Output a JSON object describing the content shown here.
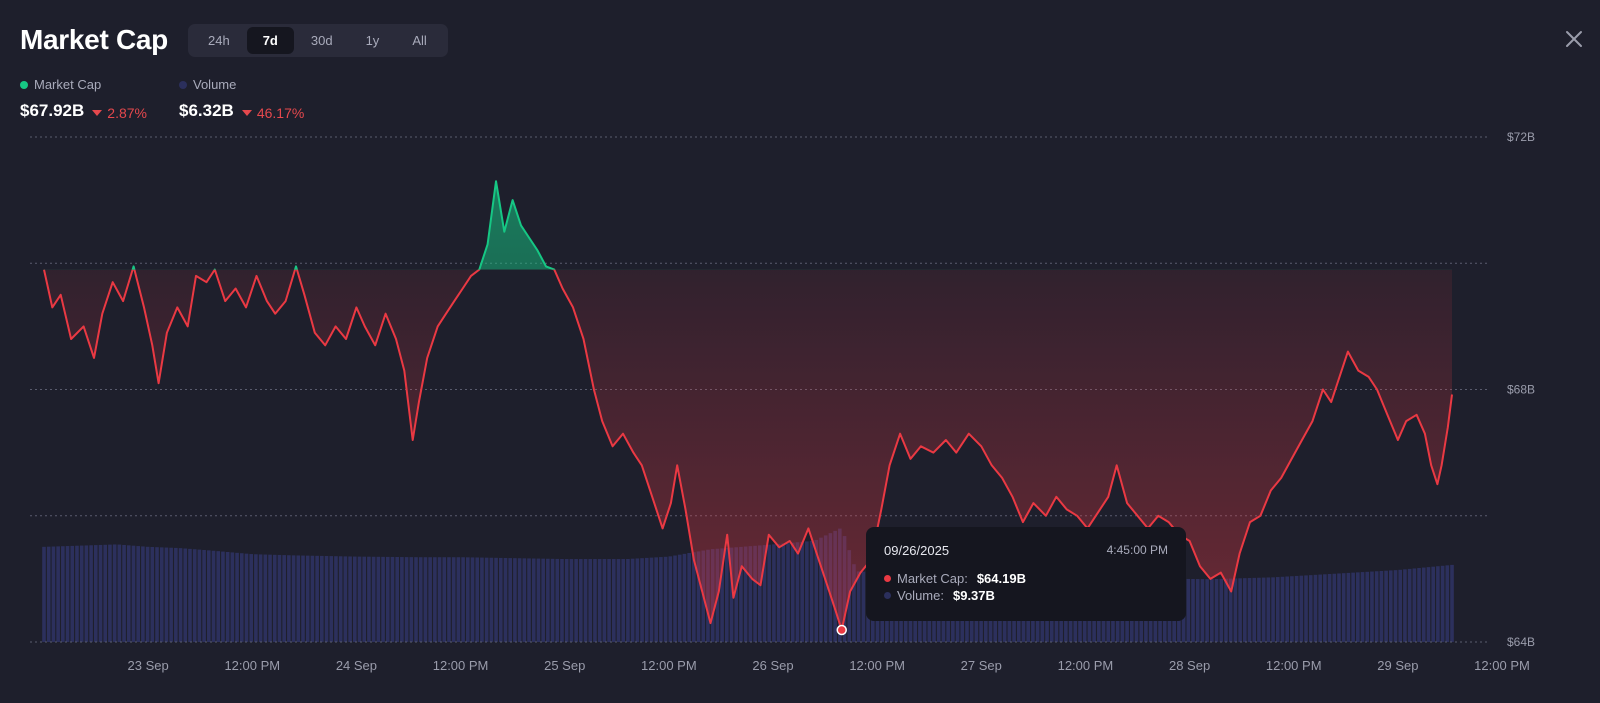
{
  "header": {
    "title": "Market Cap",
    "tabs": [
      {
        "label": "24h",
        "active": false
      },
      {
        "label": "7d",
        "active": true
      },
      {
        "label": "30d",
        "active": false
      },
      {
        "label": "1y",
        "active": false
      },
      {
        "label": "All",
        "active": false
      }
    ],
    "close_icon": "close-icon"
  },
  "legend": {
    "market_cap": {
      "label": "Market Cap",
      "value": "$67.92B",
      "change": "2.87%",
      "direction": "down",
      "color": "#16c784"
    },
    "volume": {
      "label": "Volume",
      "value": "$6.32B",
      "change": "46.17%",
      "direction": "down",
      "color": "#3a3f7a"
    }
  },
  "tooltip": {
    "date": "09/26/2025",
    "time": "4:45:00 PM",
    "market_cap_label": "Market Cap:",
    "market_cap_value": "$64.19B",
    "volume_label": "Volume:",
    "volume_value": "$9.37B"
  },
  "colors": {
    "up": "#16c784",
    "down": "#ea3943",
    "volume": "#2f3466",
    "background": "#1e1f2c"
  },
  "chart_data": {
    "type": "area",
    "x_tick_labels": [
      "23 Sep",
      "12:00 PM",
      "24 Sep",
      "12:00 PM",
      "25 Sep",
      "12:00 PM",
      "26 Sep",
      "12:00 PM",
      "27 Sep",
      "12:00 PM",
      "28 Sep",
      "12:00 PM",
      "29 Sep",
      "12:00 PM"
    ],
    "y_tick_labels": [
      "$72B",
      "$68B",
      "$64B"
    ],
    "ylim": [
      64,
      72
    ],
    "baseline": 69.9,
    "grid": true,
    "xrange": [
      0,
      7
    ],
    "market_cap": [
      [
        0.0,
        69.9
      ],
      [
        0.04,
        69.3
      ],
      [
        0.08,
        69.5
      ],
      [
        0.13,
        68.8
      ],
      [
        0.19,
        69.0
      ],
      [
        0.24,
        68.5
      ],
      [
        0.28,
        69.2
      ],
      [
        0.33,
        69.7
      ],
      [
        0.38,
        69.4
      ],
      [
        0.43,
        69.95
      ],
      [
        0.48,
        69.3
      ],
      [
        0.52,
        68.7
      ],
      [
        0.55,
        68.1
      ],
      [
        0.59,
        68.9
      ],
      [
        0.64,
        69.3
      ],
      [
        0.69,
        69.0
      ],
      [
        0.73,
        69.8
      ],
      [
        0.78,
        69.7
      ],
      [
        0.82,
        69.9
      ],
      [
        0.87,
        69.4
      ],
      [
        0.92,
        69.6
      ],
      [
        0.97,
        69.3
      ],
      [
        1.02,
        69.8
      ],
      [
        1.07,
        69.4
      ],
      [
        1.11,
        69.2
      ],
      [
        1.16,
        69.4
      ],
      [
        1.21,
        69.95
      ],
      [
        1.25,
        69.5
      ],
      [
        1.3,
        68.9
      ],
      [
        1.35,
        68.7
      ],
      [
        1.4,
        69.0
      ],
      [
        1.45,
        68.8
      ],
      [
        1.5,
        69.3
      ],
      [
        1.54,
        69.0
      ],
      [
        1.59,
        68.7
      ],
      [
        1.64,
        69.2
      ],
      [
        1.69,
        68.8
      ],
      [
        1.73,
        68.3
      ],
      [
        1.77,
        67.2
      ],
      [
        1.8,
        67.8
      ],
      [
        1.84,
        68.5
      ],
      [
        1.89,
        69.0
      ],
      [
        1.93,
        69.2
      ],
      [
        1.97,
        69.4
      ],
      [
        2.01,
        69.6
      ],
      [
        2.05,
        69.8
      ],
      [
        2.09,
        69.9
      ],
      [
        2.13,
        70.3
      ],
      [
        2.17,
        71.3
      ],
      [
        2.21,
        70.5
      ],
      [
        2.25,
        71.0
      ],
      [
        2.29,
        70.6
      ],
      [
        2.33,
        70.4
      ],
      [
        2.37,
        70.2
      ],
      [
        2.41,
        69.95
      ],
      [
        2.45,
        69.9
      ],
      [
        2.49,
        69.6
      ],
      [
        2.54,
        69.3
      ],
      [
        2.59,
        68.8
      ],
      [
        2.64,
        68.0
      ],
      [
        2.68,
        67.5
      ],
      [
        2.73,
        67.1
      ],
      [
        2.78,
        67.3
      ],
      [
        2.83,
        67.0
      ],
      [
        2.87,
        66.8
      ],
      [
        2.92,
        66.3
      ],
      [
        2.97,
        65.8
      ],
      [
        3.01,
        66.2
      ],
      [
        3.04,
        66.8
      ],
      [
        3.08,
        66.1
      ],
      [
        3.12,
        65.3
      ],
      [
        3.16,
        64.8
      ],
      [
        3.2,
        64.3
      ],
      [
        3.24,
        64.8
      ],
      [
        3.28,
        65.7
      ],
      [
        3.31,
        64.7
      ],
      [
        3.35,
        65.2
      ],
      [
        3.4,
        65.0
      ],
      [
        3.44,
        64.9
      ],
      [
        3.48,
        65.7
      ],
      [
        3.53,
        65.5
      ],
      [
        3.58,
        65.6
      ],
      [
        3.62,
        65.4
      ],
      [
        3.67,
        65.8
      ],
      [
        3.72,
        65.3
      ],
      [
        3.76,
        64.9
      ],
      [
        3.8,
        64.5
      ],
      [
        3.83,
        64.19
      ],
      [
        3.87,
        64.8
      ],
      [
        3.92,
        65.1
      ],
      [
        3.97,
        65.3
      ],
      [
        4.02,
        66.1
      ],
      [
        4.06,
        66.8
      ],
      [
        4.11,
        67.3
      ],
      [
        4.16,
        66.9
      ],
      [
        4.21,
        67.1
      ],
      [
        4.27,
        67.0
      ],
      [
        4.33,
        67.2
      ],
      [
        4.38,
        67.0
      ],
      [
        4.44,
        67.3
      ],
      [
        4.5,
        67.1
      ],
      [
        4.55,
        66.8
      ],
      [
        4.6,
        66.6
      ],
      [
        4.65,
        66.3
      ],
      [
        4.7,
        65.9
      ],
      [
        4.75,
        66.2
      ],
      [
        4.81,
        66.0
      ],
      [
        4.86,
        66.3
      ],
      [
        4.91,
        66.1
      ],
      [
        4.96,
        66.0
      ],
      [
        5.01,
        65.8
      ],
      [
        5.05,
        66.0
      ],
      [
        5.11,
        66.3
      ],
      [
        5.15,
        66.8
      ],
      [
        5.2,
        66.2
      ],
      [
        5.25,
        66.0
      ],
      [
        5.3,
        65.8
      ],
      [
        5.35,
        66.0
      ],
      [
        5.4,
        65.9
      ],
      [
        5.45,
        65.7
      ],
      [
        5.5,
        65.6
      ],
      [
        5.55,
        65.2
      ],
      [
        5.6,
        65.0
      ],
      [
        5.65,
        65.1
      ],
      [
        5.7,
        64.8
      ],
      [
        5.74,
        65.4
      ],
      [
        5.79,
        65.9
      ],
      [
        5.84,
        66.0
      ],
      [
        5.89,
        66.4
      ],
      [
        5.94,
        66.6
      ],
      [
        5.99,
        66.9
      ],
      [
        6.04,
        67.2
      ],
      [
        6.09,
        67.5
      ],
      [
        6.14,
        68.0
      ],
      [
        6.18,
        67.8
      ],
      [
        6.22,
        68.2
      ],
      [
        6.26,
        68.6
      ],
      [
        6.31,
        68.3
      ],
      [
        6.36,
        68.2
      ],
      [
        6.4,
        68.0
      ],
      [
        6.45,
        67.6
      ],
      [
        6.5,
        67.2
      ],
      [
        6.54,
        67.5
      ],
      [
        6.59,
        67.6
      ],
      [
        6.63,
        67.3
      ],
      [
        6.66,
        66.8
      ],
      [
        6.69,
        66.5
      ],
      [
        6.71,
        66.8
      ],
      [
        6.74,
        67.4
      ],
      [
        6.76,
        67.92
      ]
    ],
    "volume": [
      [
        0.0,
        7.8
      ],
      [
        0.35,
        8.0
      ],
      [
        0.5,
        7.8
      ],
      [
        0.65,
        7.7
      ],
      [
        0.8,
        7.5
      ],
      [
        1.0,
        7.2
      ],
      [
        1.2,
        7.1
      ],
      [
        1.5,
        7.0
      ],
      [
        1.8,
        6.95
      ],
      [
        2.0,
        6.95
      ],
      [
        2.5,
        6.8
      ],
      [
        2.8,
        6.8
      ],
      [
        3.0,
        7.0
      ],
      [
        3.2,
        7.6
      ],
      [
        3.5,
        8.0
      ],
      [
        3.7,
        8.3
      ],
      [
        3.83,
        9.37
      ],
      [
        3.9,
        5.8
      ],
      [
        4.2,
        5.5
      ],
      [
        4.6,
        5.3
      ],
      [
        5.0,
        5.3
      ],
      [
        5.3,
        5.2
      ],
      [
        5.6,
        5.15
      ],
      [
        5.9,
        5.3
      ],
      [
        6.2,
        5.6
      ],
      [
        6.5,
        5.9
      ],
      [
        6.76,
        6.32
      ]
    ],
    "volume_max": 10,
    "highlight_x": 3.83
  }
}
